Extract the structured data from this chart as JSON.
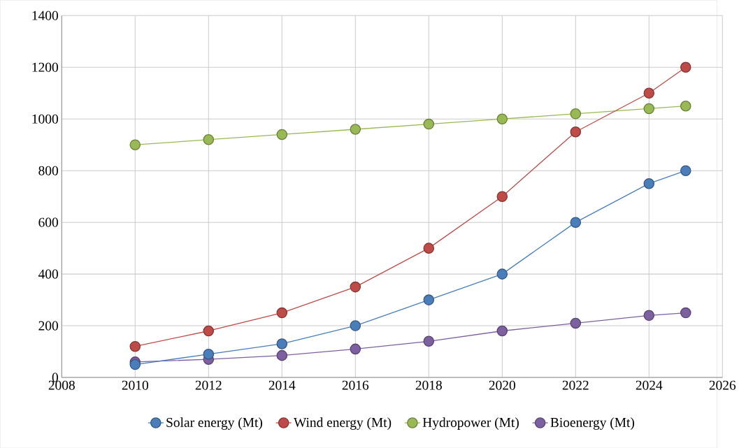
{
  "chart_data": {
    "type": "line",
    "x": [
      2010,
      2012,
      2014,
      2016,
      2018,
      2020,
      2022,
      2024,
      2025
    ],
    "series": [
      {
        "name": "Solar energy (Mt)",
        "color": "#4a7ebb",
        "values": [
          50,
          90,
          130,
          200,
          300,
          400,
          600,
          750,
          800
        ]
      },
      {
        "name": "Wind energy (Mt)",
        "color": "#be4b48",
        "values": [
          120,
          180,
          250,
          350,
          500,
          700,
          950,
          1100,
          1200
        ]
      },
      {
        "name": "Hydropower (Mt)",
        "color": "#98b954",
        "values": [
          900,
          920,
          940,
          960,
          980,
          1000,
          1020,
          1040,
          1050
        ]
      },
      {
        "name": "Bioenergy (Mt)",
        "color": "#7d60a0",
        "values": [
          60,
          70,
          85,
          110,
          140,
          180,
          210,
          240,
          250
        ]
      }
    ],
    "xlim": [
      2008,
      2026
    ],
    "xticks": [
      2008,
      2010,
      2012,
      2014,
      2016,
      2018,
      2020,
      2022,
      2024,
      2026
    ],
    "ylim": [
      0,
      1400
    ],
    "yticks": [
      0,
      200,
      400,
      600,
      800,
      1000,
      1200,
      1400
    ],
    "grid": true,
    "legend": "bottom",
    "marker": "circle",
    "line_style": "solid"
  }
}
